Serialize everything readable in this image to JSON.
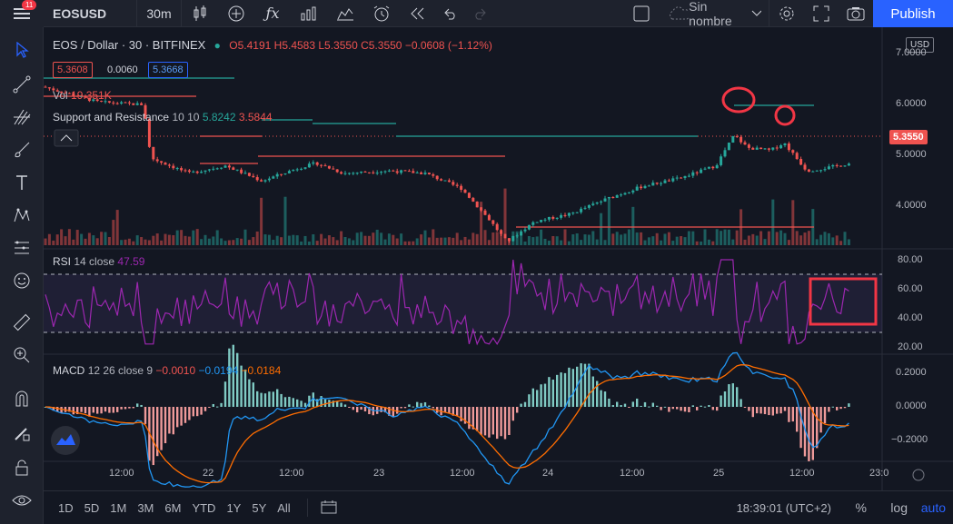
{
  "toolbar": {
    "symbol": "EOSUSD",
    "interval": "30m",
    "layout_name": "Sin nombre",
    "publish_label": "Publish",
    "notification_count": "11"
  },
  "legend": {
    "title": "EOS / Dollar · 30 · BITFINEX",
    "open": "O5.4191",
    "high": "H5.4583",
    "low": "L5.3550",
    "close": "C5.3550",
    "change": "−0.0608 (−1.12%)",
    "bid": "5.3608",
    "spread": "0.0060",
    "ask": "5.3668",
    "vol_label": "Vol",
    "vol_value": "19.351K",
    "sr_label": "Support and Resistance",
    "sr_params": "10 10",
    "sr_val1": "5.8242",
    "sr_val2": "3.5844"
  },
  "rsi": {
    "label": "RSI",
    "params": "14 close",
    "value": "47.59"
  },
  "macd": {
    "label": "MACD",
    "params": "12 26 close 9",
    "v1": "−0.0010",
    "v2": "−0.0194",
    "v3": "−0.0184"
  },
  "price_axis": {
    "currency": "USD",
    "ticks": [
      "7.0000",
      "6.0000",
      "5.0000",
      "4.0000"
    ],
    "last_price": "5.3550"
  },
  "rsi_axis": {
    "ticks": [
      "80.00",
      "60.00",
      "40.00",
      "20.00"
    ]
  },
  "macd_axis": {
    "ticks": [
      "0.2000",
      "0.0000",
      "−0.2000"
    ]
  },
  "time_axis": {
    "ticks": [
      "12:00",
      "22",
      "12:00",
      "23",
      "12:00",
      "24",
      "12:00",
      "25",
      "12:00",
      "23:0"
    ]
  },
  "bottom": {
    "ranges": [
      "1D",
      "5D",
      "1M",
      "3M",
      "6M",
      "YTD",
      "1Y",
      "5Y",
      "All"
    ],
    "clock": "18:39:01 (UTC+2)",
    "percent_label": "%",
    "log_label": "log",
    "auto_label": "auto"
  },
  "colors": {
    "up": "#26a69a",
    "down": "#ef5350",
    "accent": "#2962ff",
    "rsi": "#9c27b0",
    "macd_line": "#2196f3",
    "signal_line": "#ff6d00"
  }
}
